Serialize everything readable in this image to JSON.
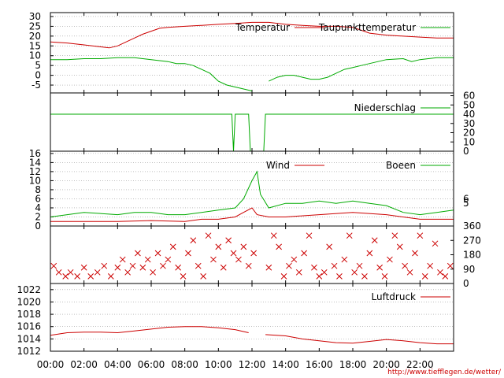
{
  "source_credit": "http://www.tiefflegen.de/wetter/",
  "x_axis": {
    "labels": [
      "00:00",
      "02:00",
      "04:00",
      "06:00",
      "08:00",
      "10:00",
      "12:00",
      "14:00",
      "16:00",
      "18:00",
      "20:00",
      "22:00"
    ],
    "range_hours": [
      0,
      24
    ]
  },
  "colors": {
    "red": "#cc0000",
    "green": "#00aa00",
    "grid": "#999999"
  },
  "chart_data": [
    {
      "type": "line",
      "panel": "temperature",
      "x_unit": "hour",
      "ylim": [
        -9,
        32
      ],
      "yticks": [
        30,
        25,
        20,
        15,
        10,
        5,
        0,
        -5
      ],
      "grid": true,
      "legend_position": "top-right",
      "series": [
        {
          "name": "Temperatur",
          "color": "#cc0000",
          "points": [
            [
              0,
              17
            ],
            [
              1,
              16.5
            ],
            [
              2,
              15.5
            ],
            [
              3,
              14.5
            ],
            [
              3.5,
              14
            ],
            [
              4,
              15
            ],
            [
              4.5,
              17
            ],
            [
              5,
              19
            ],
            [
              5.5,
              21
            ],
            [
              6,
              22.5
            ],
            [
              6.5,
              24
            ],
            [
              7,
              24.5
            ],
            [
              8,
              25
            ],
            [
              9,
              25.5
            ],
            [
              10,
              26
            ],
            [
              11,
              26.5
            ],
            [
              12,
              27
            ],
            [
              13,
              27
            ],
            [
              14,
              26
            ],
            [
              15,
              25.5
            ],
            [
              16,
              25
            ],
            [
              17,
              25
            ],
            [
              18,
              24.5
            ],
            [
              18.5,
              23
            ],
            [
              19,
              21.5
            ],
            [
              20,
              20.5
            ],
            [
              21,
              20
            ],
            [
              22,
              19.5
            ],
            [
              23,
              19
            ],
            [
              24,
              19
            ]
          ]
        },
        {
          "name": "Taupunkttemperatur",
          "color": "#00aa00",
          "points": [
            [
              0,
              8
            ],
            [
              1,
              8
            ],
            [
              2,
              8.5
            ],
            [
              3,
              8.5
            ],
            [
              4,
              9
            ],
            [
              5,
              9
            ],
            [
              6,
              8
            ],
            [
              7,
              7
            ],
            [
              7.5,
              6
            ],
            [
              8,
              6
            ],
            [
              8.5,
              5
            ],
            [
              9,
              3
            ],
            [
              9.5,
              1
            ],
            [
              10,
              -3
            ],
            [
              10.5,
              -5
            ],
            [
              11,
              -6
            ],
            [
              11.5,
              -7
            ],
            [
              12,
              -8
            ],
            null,
            [
              13,
              -3
            ],
            [
              13.5,
              -1
            ],
            [
              14,
              0
            ],
            [
              14.5,
              0
            ],
            [
              15,
              -1
            ],
            [
              15.5,
              -2
            ],
            [
              16,
              -2
            ],
            [
              16.5,
              -1
            ],
            [
              17,
              1
            ],
            [
              17.5,
              3
            ],
            [
              18,
              4
            ],
            [
              18.5,
              5
            ],
            [
              19,
              6
            ],
            [
              19.5,
              7
            ],
            [
              20,
              8
            ],
            [
              21,
              8.5
            ],
            [
              21.5,
              7
            ],
            [
              22,
              8
            ],
            [
              23,
              9
            ],
            [
              24,
              9
            ]
          ]
        }
      ]
    },
    {
      "type": "line",
      "panel": "precipitation",
      "x_unit": "hour",
      "ylim": [
        0,
        63
      ],
      "yticks": [
        60,
        50,
        40,
        30,
        20,
        10,
        0
      ],
      "y_axis_side": "right",
      "grid": false,
      "legend_position": "top-right",
      "series": [
        {
          "name": "Niederschlag",
          "color": "#00aa00",
          "points": [
            [
              0,
              40
            ],
            [
              10.8,
              40
            ],
            [
              10.9,
              0
            ],
            [
              11.0,
              40
            ],
            [
              11.8,
              40
            ],
            [
              11.9,
              0
            ],
            [
              12.7,
              0
            ],
            [
              12.8,
              40
            ],
            [
              24,
              40
            ]
          ]
        }
      ]
    },
    {
      "type": "line",
      "panel": "wind",
      "x_unit": "hour",
      "ylim": [
        0,
        16.5
      ],
      "yticks": [
        16,
        14,
        12,
        10,
        8,
        6,
        4,
        2,
        0
      ],
      "right_ticks": [
        6,
        5
      ],
      "grid": true,
      "legend_position": "top-right",
      "series": [
        {
          "name": "Wind",
          "color": "#cc0000",
          "points": [
            [
              0,
              1
            ],
            [
              2,
              1
            ],
            [
              4,
              1
            ],
            [
              6,
              1.2
            ],
            [
              8,
              1
            ],
            [
              9,
              1.5
            ],
            [
              10,
              1.5
            ],
            [
              11,
              2
            ],
            [
              11.5,
              3
            ],
            [
              12,
              4
            ],
            [
              12.3,
              2.5
            ],
            [
              13,
              2
            ],
            [
              14,
              2
            ],
            [
              16,
              2.5
            ],
            [
              18,
              3
            ],
            [
              20,
              2.5
            ],
            [
              22,
              1.5
            ],
            [
              24,
              1.5
            ]
          ]
        },
        {
          "name": "Boeen",
          "color": "#00aa00",
          "points": [
            [
              0,
              2
            ],
            [
              2,
              3
            ],
            [
              4,
              2.5
            ],
            [
              5,
              3
            ],
            [
              6,
              3
            ],
            [
              7,
              2.5
            ],
            [
              8,
              2.5
            ],
            [
              9,
              3
            ],
            [
              10,
              3.5
            ],
            [
              11,
              4
            ],
            [
              11.5,
              6
            ],
            [
              12,
              10
            ],
            [
              12.3,
              12
            ],
            [
              12.5,
              7
            ],
            [
              13,
              4
            ],
            [
              14,
              5
            ],
            [
              15,
              5
            ],
            [
              16,
              5.5
            ],
            [
              17,
              5
            ],
            [
              18,
              5.5
            ],
            [
              19,
              5
            ],
            [
              20,
              4.5
            ],
            [
              21,
              3
            ],
            [
              22,
              2.5
            ],
            [
              23,
              3
            ],
            [
              24,
              3.5
            ]
          ]
        }
      ]
    },
    {
      "type": "scatter",
      "panel": "wind-direction",
      "x_unit": "hour",
      "ylim": [
        0,
        360
      ],
      "yticks": [
        360,
        270,
        180,
        90,
        0
      ],
      "y_axis_side": "right",
      "marker": "x",
      "color": "#cc0000",
      "grid": false,
      "points": [
        [
          0.2,
          110
        ],
        [
          0.5,
          70
        ],
        [
          0.9,
          45
        ],
        [
          1.2,
          70
        ],
        [
          1.6,
          45
        ],
        [
          2.0,
          100
        ],
        [
          2.4,
          45
        ],
        [
          2.8,
          70
        ],
        [
          3.2,
          110
        ],
        [
          3.6,
          45
        ],
        [
          4.0,
          100
        ],
        [
          4.3,
          150
        ],
        [
          4.6,
          70
        ],
        [
          4.9,
          110
        ],
        [
          5.2,
          190
        ],
        [
          5.5,
          100
        ],
        [
          5.8,
          150
        ],
        [
          6.1,
          70
        ],
        [
          6.4,
          190
        ],
        [
          6.7,
          110
        ],
        [
          7.0,
          150
        ],
        [
          7.3,
          230
        ],
        [
          7.6,
          100
        ],
        [
          7.9,
          45
        ],
        [
          8.2,
          190
        ],
        [
          8.5,
          270
        ],
        [
          8.8,
          110
        ],
        [
          9.1,
          45
        ],
        [
          9.4,
          300
        ],
        [
          9.7,
          150
        ],
        [
          10.0,
          230
        ],
        [
          10.3,
          100
        ],
        [
          10.6,
          270
        ],
        [
          10.9,
          190
        ],
        [
          11.2,
          150
        ],
        [
          11.5,
          230
        ],
        [
          11.8,
          110
        ],
        [
          12.1,
          190
        ],
        [
          13.0,
          100
        ],
        [
          13.3,
          300
        ],
        [
          13.6,
          230
        ],
        [
          13.9,
          45
        ],
        [
          14.2,
          110
        ],
        [
          14.5,
          150
        ],
        [
          14.8,
          70
        ],
        [
          15.1,
          190
        ],
        [
          15.4,
          300
        ],
        [
          15.7,
          100
        ],
        [
          16.0,
          45
        ],
        [
          16.3,
          70
        ],
        [
          16.6,
          230
        ],
        [
          16.9,
          110
        ],
        [
          17.2,
          45
        ],
        [
          17.5,
          150
        ],
        [
          17.8,
          300
        ],
        [
          18.1,
          70
        ],
        [
          18.4,
          110
        ],
        [
          18.7,
          45
        ],
        [
          19.0,
          190
        ],
        [
          19.3,
          270
        ],
        [
          19.6,
          100
        ],
        [
          19.9,
          45
        ],
        [
          20.2,
          150
        ],
        [
          20.5,
          300
        ],
        [
          20.8,
          230
        ],
        [
          21.1,
          110
        ],
        [
          21.4,
          70
        ],
        [
          21.7,
          190
        ],
        [
          22.0,
          300
        ],
        [
          22.3,
          45
        ],
        [
          22.6,
          110
        ],
        [
          22.9,
          250
        ],
        [
          23.2,
          70
        ],
        [
          23.5,
          45
        ],
        [
          23.8,
          110
        ]
      ]
    },
    {
      "type": "line",
      "panel": "pressure",
      "x_unit": "hour",
      "ylim": [
        1012,
        1023
      ],
      "yticks": [
        1022,
        1020,
        1018,
        1016,
        1014,
        1012
      ],
      "grid": true,
      "legend_position": "top-right",
      "series": [
        {
          "name": "Luftdruck",
          "color": "#cc0000",
          "points": [
            [
              0,
              1014.6
            ],
            [
              1,
              1015
            ],
            [
              2,
              1015.1
            ],
            [
              3,
              1015.1
            ],
            [
              4,
              1015
            ],
            [
              5,
              1015.3
            ],
            [
              6,
              1015.6
            ],
            [
              7,
              1015.9
            ],
            [
              8,
              1016
            ],
            [
              9,
              1016
            ],
            [
              10,
              1015.8
            ],
            [
              11,
              1015.5
            ],
            [
              11.8,
              1015
            ],
            null,
            [
              12.8,
              1014.7
            ],
            [
              14,
              1014.5
            ],
            [
              15,
              1014
            ],
            [
              16,
              1013.7
            ],
            [
              17,
              1013.4
            ],
            [
              18,
              1013.3
            ],
            [
              19,
              1013.6
            ],
            [
              20,
              1013.9
            ],
            [
              21,
              1013.7
            ],
            [
              22,
              1013.4
            ],
            [
              23,
              1013.2
            ],
            [
              24,
              1013.2
            ]
          ]
        }
      ]
    }
  ]
}
